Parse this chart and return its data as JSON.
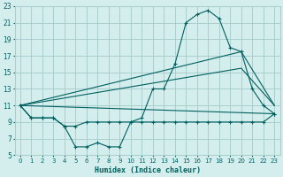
{
  "xlabel": "Humidex (Indice chaleur)",
  "xlim": [
    -0.5,
    23.5
  ],
  "ylim": [
    5,
    23
  ],
  "yticks": [
    5,
    7,
    9,
    11,
    13,
    15,
    17,
    19,
    21,
    23
  ],
  "xticks": [
    0,
    1,
    2,
    3,
    4,
    5,
    6,
    7,
    8,
    9,
    10,
    11,
    12,
    13,
    14,
    15,
    16,
    17,
    18,
    19,
    20,
    21,
    22,
    23
  ],
  "bg_color": "#d4eeed",
  "grid_color": "#aacfce",
  "line_color": "#005f5f",
  "lines": [
    {
      "x": [
        0,
        1,
        2,
        3,
        4,
        5,
        6,
        7,
        8,
        9,
        10,
        11,
        12,
        13,
        14,
        15,
        16,
        17,
        18,
        19,
        20,
        21,
        22,
        23
      ],
      "y": [
        11,
        9.5,
        9.5,
        9.5,
        8.5,
        6,
        6,
        6.5,
        6,
        6,
        9,
        9.5,
        13,
        13,
        16,
        21,
        22,
        22.5,
        21.5,
        18,
        17.5,
        13,
        11,
        10
      ],
      "marker": true
    },
    {
      "x": [
        0,
        1,
        2,
        3,
        4,
        5,
        6,
        7,
        8,
        9,
        10,
        11,
        12,
        13,
        14,
        15,
        16,
        17,
        18,
        19,
        20,
        21,
        22,
        23
      ],
      "y": [
        11,
        9.5,
        9.5,
        9.5,
        8.5,
        8.5,
        9,
        9,
        9,
        9,
        9,
        9,
        9,
        9,
        9,
        9,
        9,
        9,
        9,
        9,
        9,
        9,
        9,
        10
      ],
      "marker": true
    },
    {
      "x": [
        0,
        23
      ],
      "y": [
        11,
        10
      ],
      "marker": false
    },
    {
      "x": [
        0,
        20,
        23
      ],
      "y": [
        11,
        15.5,
        11
      ],
      "marker": false
    },
    {
      "x": [
        0,
        20,
        23
      ],
      "y": [
        11,
        17.5,
        11
      ],
      "marker": false
    }
  ]
}
